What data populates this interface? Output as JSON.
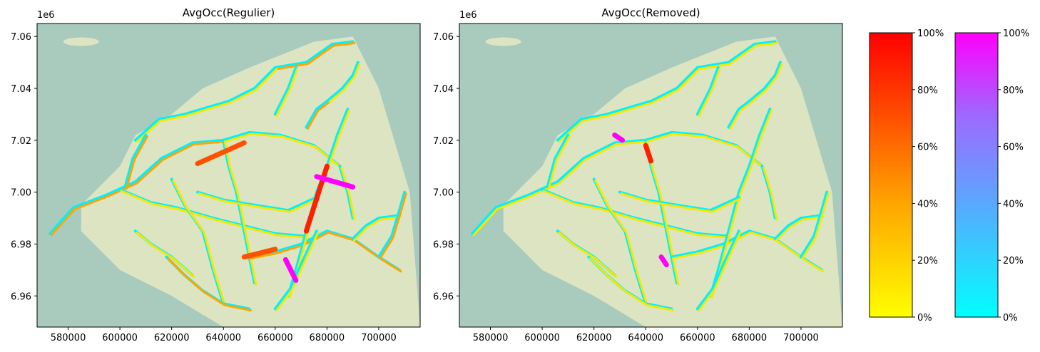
{
  "chart_data": [
    {
      "type": "map",
      "title": "AvgOcc(Regulier)",
      "axis_offset_label": "1e6",
      "xlim": [
        568000,
        716000
      ],
      "ylim": [
        6.948,
        7.065
      ],
      "x_ticks": [
        580000,
        600000,
        620000,
        640000,
        660000,
        680000,
        700000
      ],
      "y_ticks": [
        6.96,
        6.98,
        7.0,
        7.02,
        7.04,
        7.06
      ],
      "x_tick_labels": [
        "580000",
        "600000",
        "620000",
        "640000",
        "660000",
        "680000",
        "700000"
      ],
      "y_tick_labels": [
        "6.96",
        "6.98",
        "7.00",
        "7.02",
        "7.04",
        "7.06"
      ],
      "colors": {
        "low": "#ffff00",
        "mid": "#ffa500",
        "high": "#ff2000",
        "alt_low": "#00ffff",
        "alt_high": "#ff00ff"
      },
      "highlight_segments": [
        {
          "x": [
            630000,
            648000
          ],
          "y": [
            7.011,
            7.019
          ],
          "occupancy": 0.75,
          "scheme": "red"
        },
        {
          "x": [
            672000,
            680000
          ],
          "y": [
            6.985,
            7.01
          ],
          "occupancy": 0.95,
          "scheme": "red"
        },
        {
          "x": [
            648000,
            660000
          ],
          "y": [
            6.975,
            6.978
          ],
          "occupancy": 0.7,
          "scheme": "red"
        },
        {
          "x": [
            676000,
            690000
          ],
          "y": [
            7.006,
            7.002
          ],
          "occupancy": 1.0,
          "scheme": "magenta"
        },
        {
          "x": [
            664000,
            668000
          ],
          "y": [
            6.974,
            6.966
          ],
          "occupancy": 1.0,
          "scheme": "magenta"
        }
      ]
    },
    {
      "type": "map",
      "title": "AvgOcc(Removed)",
      "axis_offset_label": "1e6",
      "xlim": [
        568000,
        716000
      ],
      "ylim": [
        6.948,
        7.065
      ],
      "x_ticks": [
        580000,
        600000,
        620000,
        640000,
        660000,
        680000,
        700000
      ],
      "y_ticks": [
        6.96,
        6.98,
        7.0,
        7.02,
        7.04,
        7.06
      ],
      "x_tick_labels": [
        "580000",
        "600000",
        "620000",
        "640000",
        "660000",
        "680000",
        "700000"
      ],
      "y_tick_labels": [
        "6.96",
        "6.98",
        "7.00",
        "7.02",
        "7.04",
        "7.06"
      ],
      "colors": {
        "low": "#ffff00",
        "mid": "#ffa500",
        "high": "#ff2000",
        "alt_low": "#00ffff",
        "alt_high": "#ff00ff"
      },
      "highlight_segments": [
        {
          "x": [
            640000,
            642000
          ],
          "y": [
            7.018,
            7.012
          ],
          "occupancy": 0.95,
          "scheme": "red"
        },
        {
          "x": [
            628000,
            631000
          ],
          "y": [
            7.022,
            7.02
          ],
          "occupancy": 0.9,
          "scheme": "magenta"
        },
        {
          "x": [
            646000,
            648000
          ],
          "y": [
            6.975,
            6.972
          ],
          "occupancy": 0.9,
          "scheme": "magenta"
        }
      ]
    }
  ],
  "colorbars": [
    {
      "name": "red-scale",
      "stops": [
        "#ffff00",
        "#ffa500",
        "#ff5000",
        "#ff0000"
      ],
      "tick_labels": [
        "0%",
        "20%",
        "40%",
        "60%",
        "80%",
        "100%"
      ]
    },
    {
      "name": "magenta-scale",
      "stops": [
        "#00ffff",
        "#5aa8ff",
        "#9b6cff",
        "#ff00ff"
      ],
      "tick_labels": [
        "0%",
        "20%",
        "40%",
        "60%",
        "80%",
        "100%"
      ]
    }
  ]
}
